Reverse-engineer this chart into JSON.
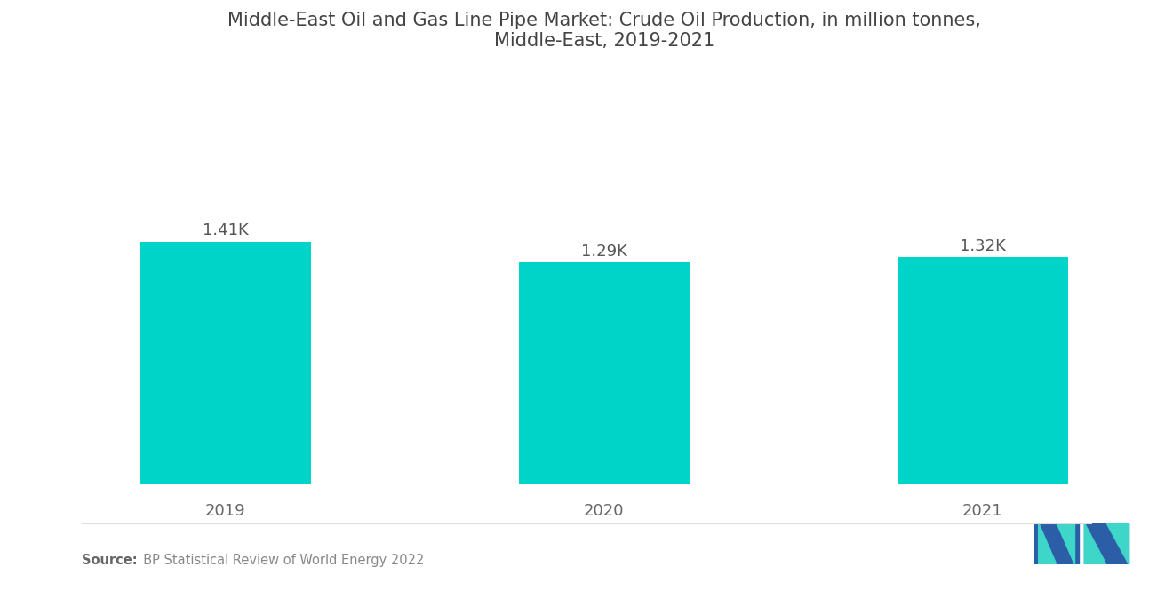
{
  "title_line1": "Middle-East Oil and Gas Line Pipe Market: Crude Oil Production, in million tonnes,",
  "title_line2": "Middle-East, 2019-2021",
  "categories": [
    "2019",
    "2020",
    "2021"
  ],
  "values": [
    1410,
    1290,
    1320
  ],
  "labels": [
    "1.41K",
    "1.29K",
    "1.32K"
  ],
  "bar_color": "#00D4C8",
  "background_color": "#ffffff",
  "title_fontsize": 15,
  "label_fontsize": 13,
  "tick_fontsize": 13,
  "source_bold": "Source:",
  "source_normal": "  BP Statistical Review of World Energy 2022",
  "ylim": [
    0,
    2400
  ],
  "bar_width": 0.45,
  "logo_m_color": "#2B5EA7",
  "logo_t_color": "#3DD6C8"
}
